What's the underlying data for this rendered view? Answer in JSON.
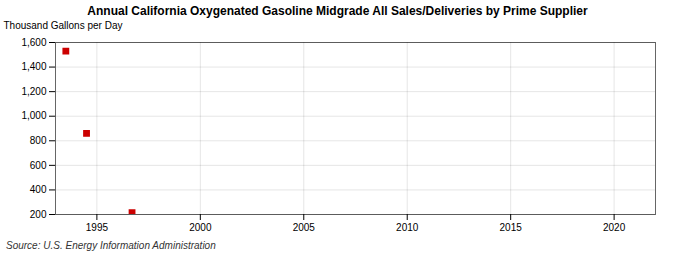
{
  "chart_data": {
    "type": "scatter",
    "title": "Annual California Oxygenated Gasoline Midgrade All Sales/Deliveries by Prime Supplier",
    "ylabel": "Thousand Gallons per Day",
    "source": "Source: U.S. Energy Information Administration",
    "x": [
      1993.5,
      1994.5,
      1996.7
    ],
    "values": [
      1530,
      860,
      215
    ],
    "color": "#cc0000",
    "marker": "square",
    "xlim": [
      1993,
      2022
    ],
    "xticks": [
      1995,
      2000,
      2005,
      2010,
      2015,
      2020
    ],
    "ylim": [
      200,
      1600
    ],
    "yticks": [
      200,
      400,
      600,
      800,
      {
        "value": 1000,
        "label": "1,000"
      },
      {
        "value": 1200,
        "label": "1,200"
      },
      {
        "value": 1400,
        "label": "1,400"
      },
      {
        "value": 1600,
        "label": "1,600"
      }
    ],
    "grid": true
  }
}
